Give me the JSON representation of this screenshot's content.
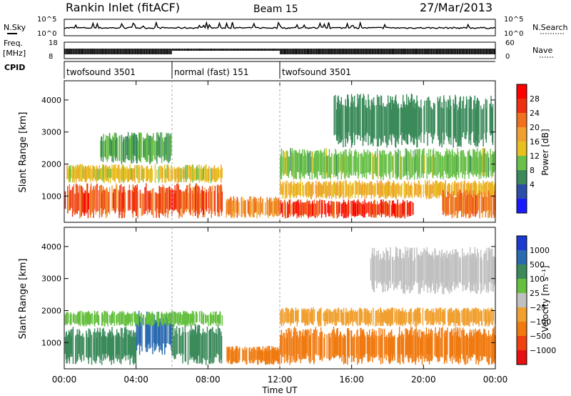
{
  "header": {
    "station": "Rankin Inlet (fitACF)",
    "beam": "Beam 15",
    "date": "27/Mar/2013"
  },
  "panels": {
    "nsky_label": "N.Sky",
    "nsky_ticks": [
      "10^5",
      "10^0"
    ],
    "nsearch_label": "N.Search",
    "nsearch_ticks": [
      "10^5",
      "10^0"
    ],
    "freq_label_1": "Freq.",
    "freq_label_2": "[MHz]",
    "freq_ticks": [
      "18",
      "8"
    ],
    "nave_label": "Nave",
    "nave_ticks": [
      "60",
      "0"
    ],
    "cpid_label": "CPID",
    "cpid_segments": [
      {
        "label": "twofsound 3501",
        "start_hr": 0,
        "end_hr": 6
      },
      {
        "label": "normal (fast) 151",
        "start_hr": 6,
        "end_hr": 12
      },
      {
        "label": "twofsound 3501",
        "start_hr": 12,
        "end_hr": 24
      }
    ]
  },
  "axes": {
    "ylabel": "Slant Range [km]",
    "yticks": [
      1000,
      2000,
      3000,
      4000
    ],
    "ylim": [
      180,
      4600
    ],
    "xlabel": "Time UT",
    "xticks": [
      "00:00",
      "04:00",
      "08:00",
      "12:00",
      "16:00",
      "20:00",
      "00:00"
    ],
    "xlim_hr": [
      0,
      24
    ]
  },
  "colorbars": {
    "power": {
      "label": "Power [dB]",
      "ticks": [
        "4",
        "8",
        "12",
        "16",
        "20",
        "24",
        "28"
      ],
      "colors": [
        "#1a1aff",
        "#2b4ea8",
        "#3a8a5a",
        "#6ac04a",
        "#e8c020",
        "#f0a030",
        "#f07020",
        "#ee3010",
        "#ff0000"
      ]
    },
    "velocity": {
      "label": "Velocity [m s⁻¹]",
      "ticks": [
        "1000",
        "500",
        "100",
        "25",
        "−25",
        "−100",
        "−500",
        "−1000"
      ],
      "colors": [
        "#1a3ad0",
        "#2a6ab0",
        "#3a8a5a",
        "#66c040",
        "#c0c0c0",
        "#f0a030",
        "#f07a10",
        "#f04010",
        "#e81010"
      ]
    }
  },
  "chart_data": [
    {
      "type": "heatmap",
      "title": "Power [dB]",
      "xlabel": "Time UT",
      "ylabel": "Slant Range [km]",
      "x_range_hr": [
        0,
        24
      ],
      "y_range_km": [
        180,
        4600
      ],
      "regions": [
        {
          "t0": 0.0,
          "t1": 8.8,
          "r0": 300,
          "r1": 1400,
          "value_db": 26
        },
        {
          "t0": 0.0,
          "t1": 8.8,
          "r0": 1400,
          "r1": 2000,
          "value_db": 16
        },
        {
          "t0": 2.0,
          "t1": 6.0,
          "r0": 2000,
          "r1": 3000,
          "value_db": 10
        },
        {
          "t0": 9.0,
          "t1": 12.0,
          "r0": 300,
          "r1": 1000,
          "value_db": 22
        },
        {
          "t0": 12.0,
          "t1": 19.5,
          "r0": 300,
          "r1": 900,
          "value_db": 28
        },
        {
          "t0": 12.0,
          "t1": 24.0,
          "r0": 900,
          "r1": 1500,
          "value_db": 18
        },
        {
          "t0": 12.0,
          "t1": 24.0,
          "r0": 1500,
          "r1": 2500,
          "value_db": 12
        },
        {
          "t0": 15.0,
          "t1": 24.0,
          "r0": 2500,
          "r1": 4200,
          "value_db": 8
        },
        {
          "t0": 21.0,
          "t1": 24.0,
          "r0": 300,
          "r1": 1200,
          "value_db": 24
        }
      ]
    },
    {
      "type": "heatmap",
      "title": "Velocity [m s⁻¹]",
      "xlabel": "Time UT",
      "ylabel": "Slant Range [km]",
      "x_range_hr": [
        0,
        24
      ],
      "y_range_km": [
        180,
        4600
      ],
      "regions": [
        {
          "t0": 0.0,
          "t1": 4.0,
          "r0": 300,
          "r1": 1500,
          "value_ms": 200
        },
        {
          "t0": 4.0,
          "t1": 6.0,
          "r0": 600,
          "r1": 2000,
          "value_ms": 800
        },
        {
          "t0": 6.0,
          "t1": 8.8,
          "r0": 300,
          "r1": 1600,
          "value_ms": 300
        },
        {
          "t0": 0.0,
          "t1": 8.8,
          "r0": 1500,
          "r1": 2000,
          "value_ms": 40
        },
        {
          "t0": 9.0,
          "t1": 12.0,
          "r0": 300,
          "r1": 900,
          "value_ms": -300
        },
        {
          "t0": 12.0,
          "t1": 24.0,
          "r0": 300,
          "r1": 1500,
          "value_ms": -200
        },
        {
          "t0": 12.0,
          "t1": 24.0,
          "r0": 1500,
          "r1": 2100,
          "value_ms": -50
        },
        {
          "t0": 17.0,
          "t1": 24.0,
          "r0": 2500,
          "r1": 4000,
          "value_ms": 0
        }
      ]
    }
  ]
}
